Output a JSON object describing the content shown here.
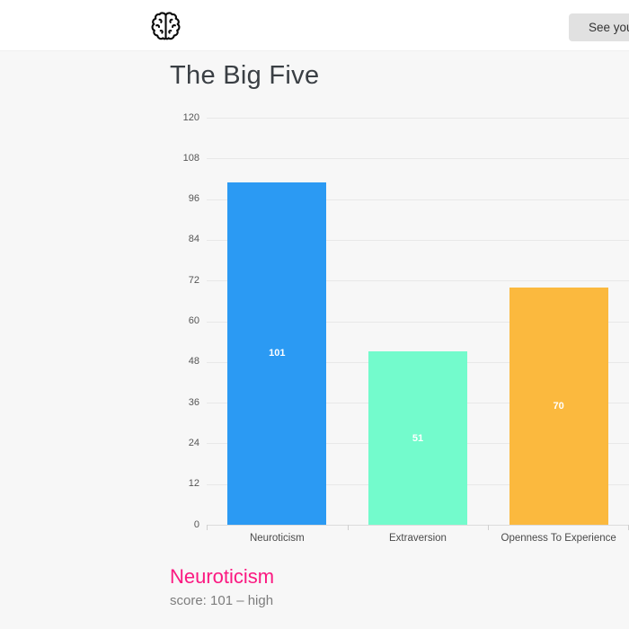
{
  "header": {
    "logo_icon": "brain-icon",
    "button_label": "See you"
  },
  "main": {
    "title": "The Big Five"
  },
  "chart_data": {
    "type": "bar",
    "title": "",
    "xlabel": "",
    "ylabel": "",
    "categories": [
      "Neuroticism",
      "Extraversion",
      "Openness To Experience"
    ],
    "values": [
      101,
      51,
      70
    ],
    "bar_colors": [
      "#2b9af3",
      "#73fbcc",
      "#fbb93e"
    ],
    "value_label_color": "#ffffff",
    "ylim": [
      0,
      120
    ],
    "ytick_step": 12,
    "yticks": [
      0,
      12,
      24,
      36,
      48,
      60,
      72,
      84,
      96,
      108,
      120
    ],
    "grid": true,
    "legend": "none",
    "value_labels_position": "inside-center"
  },
  "result": {
    "heading": "Neuroticism",
    "heading_color": "#fb1981",
    "score_text": "score: 101 – high"
  },
  "colors": {
    "page_bg": "#f7f7f7",
    "header_bg": "#ffffff",
    "button_bg": "#e1e1e1",
    "grid_line": "#e8e8e8",
    "axis_text": "#555555"
  }
}
